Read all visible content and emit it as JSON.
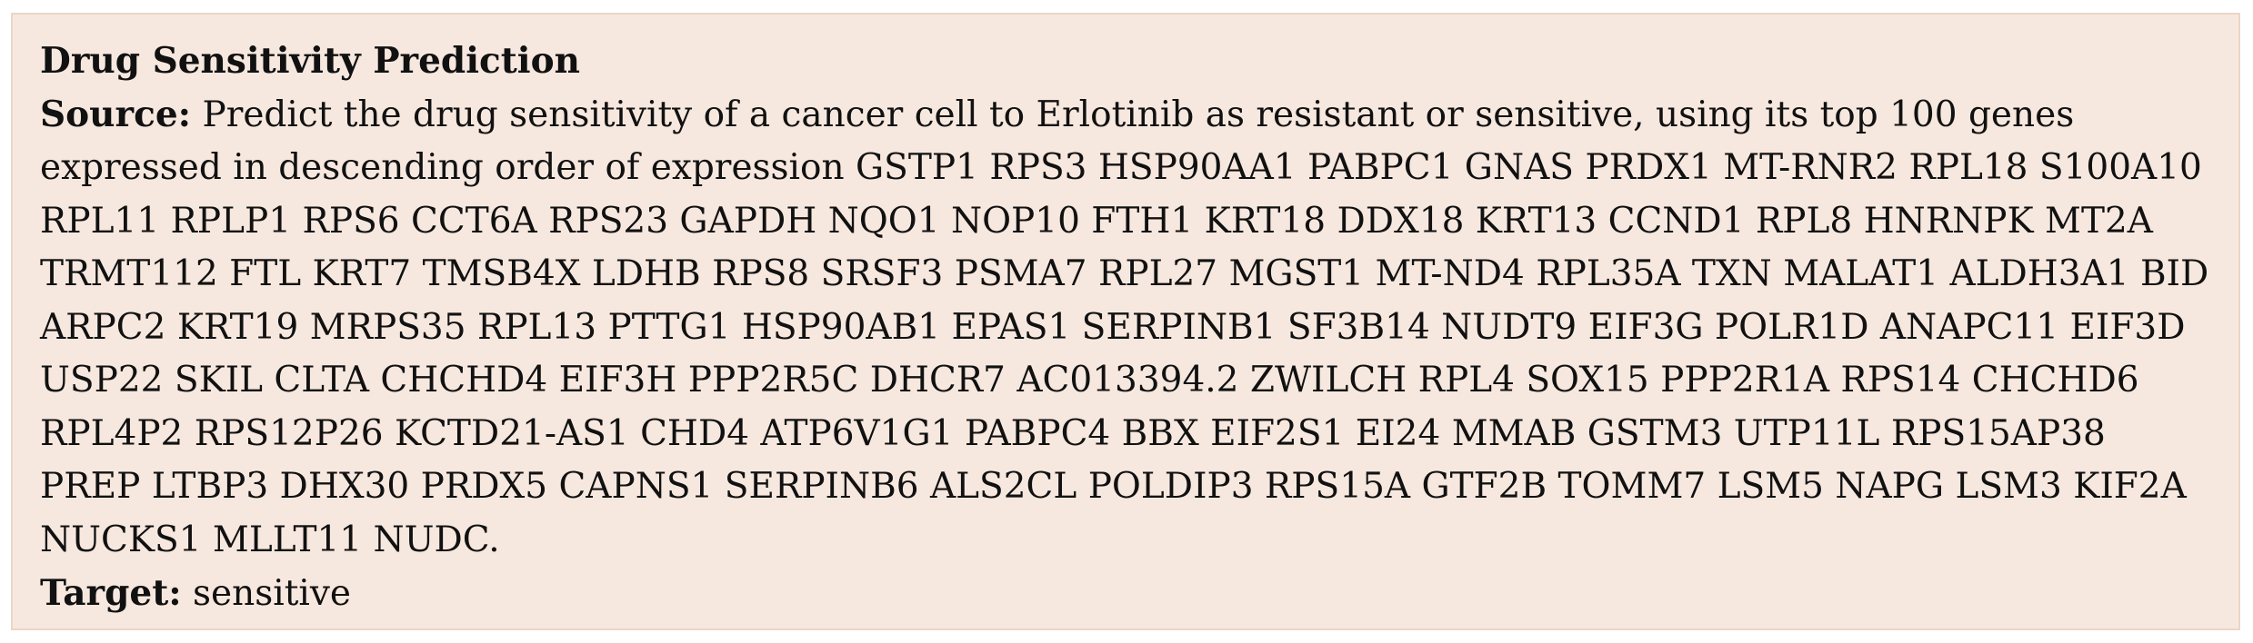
{
  "card": {
    "title": "Drug Sensitivity Prediction",
    "source_label": "Source:",
    "source_text": "Predict the drug sensitivity of a cancer cell to Erlotinib as resistant or sensitive, using its top 100 genes expressed in descending order of expression GSTP1 RPS3 HSP90AA1 PABPC1 GNAS PRDX1 MT-RNR2 RPL18 S100A10 RPL11 RPLP1 RPS6 CCT6A RPS23 GAPDH NQO1 NOP10 FTH1 KRT18 DDX18 KRT13 CCND1 RPL8 HNRNPK MT2A TRMT112 FTL KRT7 TMSB4X LDHB RPS8 SRSF3 PSMA7 RPL27 MGST1 MT-ND4 RPL35A TXN MALAT1 ALDH3A1 BID ARPC2 KRT19 MRPS35 RPL13 PTTG1 HSP90AB1 EPAS1 SERPINB1 SF3B14 NUDT9 EIF3G POLR1D ANAPC11 EIF3D USP22 SKIL CLTA CHCHD4 EIF3H PPP2R5C DHCR7 AC013394.2 ZWILCH RPL4 SOX15 PPP2R1A RPS14 CHCHD6 RPL4P2 RPS12P26 KCTD21-AS1 CHD4 ATP6V1G1 PABPC4 BBX EIF2S1 EI24 MMAB GSTM3 UTP11L RPS15AP38 PREP LTBP3 DHX30 PRDX5 CAPNS1 SERPINB6 ALS2CL POLDIP3 RPS15A GTF2B TOMM7 LSM5 NAPG LSM3 KIF2A NUCKS1 MLLT11 NUDC.",
    "target_label": "Target:",
    "target_text": "sensitive"
  },
  "colors": {
    "card_background": "#f7e8df",
    "card_border": "#ead6c9",
    "text": "#111111"
  }
}
